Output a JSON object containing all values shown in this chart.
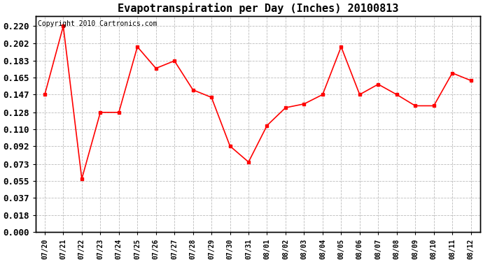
{
  "title": "Evapotranspiration per Day (Inches) 20100813",
  "copyright_text": "Copyright 2010 Cartronics.com",
  "line_color": "#FF0000",
  "background_color": "#FFFFFF",
  "plot_bg_color": "#FFFFFF",
  "grid_color": "#BBBBBB",
  "dates": [
    "07/20",
    "07/21",
    "07/22",
    "07/23",
    "07/24",
    "07/25",
    "07/26",
    "07/27",
    "07/28",
    "07/29",
    "07/30",
    "07/31",
    "08/01",
    "08/02",
    "08/03",
    "08/04",
    "08/05",
    "08/06",
    "08/07",
    "08/08",
    "08/09",
    "08/10",
    "08/11",
    "08/12"
  ],
  "values": [
    0.147,
    0.22,
    0.057,
    0.128,
    0.128,
    0.198,
    0.175,
    0.183,
    0.152,
    0.144,
    0.092,
    0.075,
    0.114,
    0.133,
    0.137,
    0.147,
    0.198,
    0.147,
    0.158,
    0.147,
    0.135,
    0.135,
    0.17,
    0.162
  ],
  "yticks": [
    0.0,
    0.018,
    0.037,
    0.055,
    0.073,
    0.092,
    0.11,
    0.128,
    0.147,
    0.165,
    0.183,
    0.202,
    0.22
  ],
  "ylim": [
    0.0,
    0.231
  ],
  "title_fontsize": 11,
  "copyright_fontsize": 7,
  "tick_fontsize": 7,
  "ytick_fontsize": 9
}
